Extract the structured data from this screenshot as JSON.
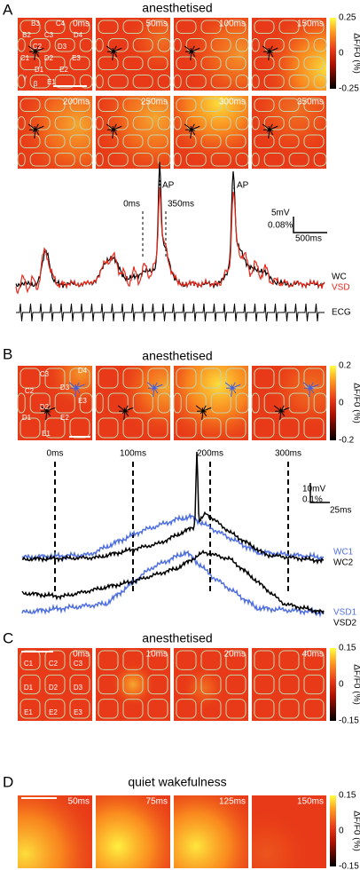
{
  "panels": [
    {
      "letter": "A",
      "title": "anesthetised",
      "frames": [
        "0ms",
        "50ms",
        "100ms",
        "150ms",
        "200ms",
        "250ms",
        "300ms",
        "350ms"
      ],
      "barrel_labels": [
        "B3",
        "C4",
        "B2",
        "C3",
        "D4",
        "C2",
        "D3",
        "C1",
        "D2",
        "E3",
        "D1",
        "E2",
        "γ",
        "E1",
        "β"
      ],
      "colorbar": {
        "ticks": [
          "0.25",
          "0",
          "-0.25"
        ],
        "label": "ΔF/F0 (%)"
      },
      "trace_markers": [
        "0ms",
        "350ms",
        "AP",
        "AP"
      ],
      "scale": [
        "5mV",
        "0.08%",
        "500ms"
      ],
      "trace_labels": [
        "WC",
        "VSD",
        "ECG"
      ]
    },
    {
      "letter": "B",
      "title": "anesthetised",
      "barrel_labels": [
        "C3",
        "D4",
        "C2",
        "D3",
        "E3",
        "D2",
        "D1",
        "E2",
        "E1"
      ],
      "colorbar": {
        "ticks": [
          "0.2",
          "0",
          "-0.2"
        ],
        "label": "ΔF/F0 (%)"
      },
      "trace_markers": [
        "0ms",
        "100ms",
        "200ms",
        "300ms"
      ],
      "scale": [
        "10mV",
        "0.1%",
        "25ms"
      ],
      "trace_labels": [
        "WC1",
        "WC2",
        "VSD1",
        "VSD2"
      ]
    },
    {
      "letter": "C",
      "title": "anesthetised",
      "frames": [
        "0ms",
        "10ms",
        "20ms",
        "40ms"
      ],
      "barrel_labels": [
        "C1",
        "C2",
        "C3",
        "D1",
        "D2",
        "D3",
        "E1",
        "E2",
        "E3"
      ],
      "colorbar": {
        "ticks": [
          "0.15",
          "0",
          "-0.15"
        ],
        "label": "ΔF/F0 (%)"
      }
    },
    {
      "letter": "D",
      "title": "quiet wakefulness",
      "frames": [
        "50ms",
        "75ms",
        "125ms",
        "150ms"
      ],
      "colorbar": {
        "ticks": [
          "0.15",
          "0",
          "-0.15"
        ],
        "label": "ΔF/F0 (%)"
      }
    }
  ]
}
